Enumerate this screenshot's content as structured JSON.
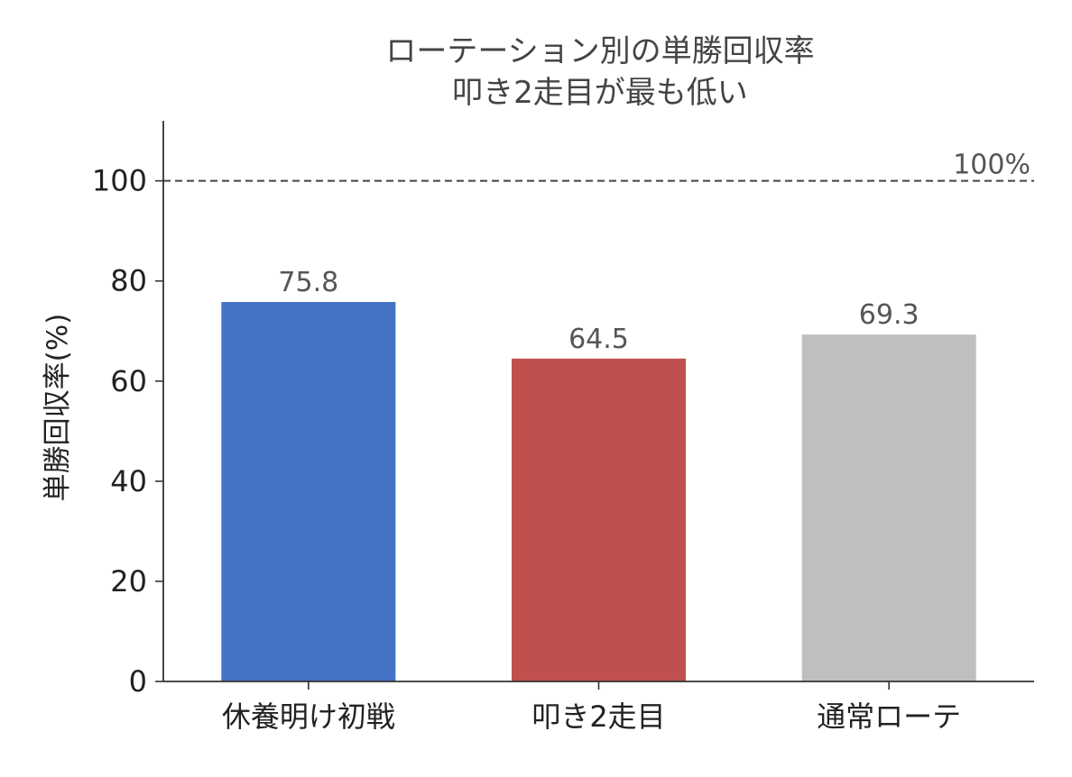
{
  "chart_data": {
    "type": "bar",
    "title_lines": [
      "ローテーション別の単勝回収率",
      "叩き2走目が最も低い"
    ],
    "xlabel": "",
    "ylabel": "単勝回収率(%)",
    "categories": [
      "休養明け初戦",
      "叩き2走目",
      "通常ローテ"
    ],
    "values": [
      75.8,
      64.5,
      69.3
    ],
    "value_labels": [
      "75.8",
      "64.5",
      "69.3"
    ],
    "colors": [
      "#4472c4",
      "#c0504d",
      "#bfbfbf"
    ],
    "ylim": [
      0,
      112
    ],
    "yticks": [
      0,
      20,
      40,
      60,
      80,
      100
    ],
    "ytick_labels": [
      "0",
      "20",
      "40",
      "60",
      "80",
      "100"
    ],
    "reference_line": {
      "value": 100,
      "label": "100%",
      "style": "dashed",
      "color": "#444444"
    },
    "grid": false,
    "legend": "none"
  }
}
